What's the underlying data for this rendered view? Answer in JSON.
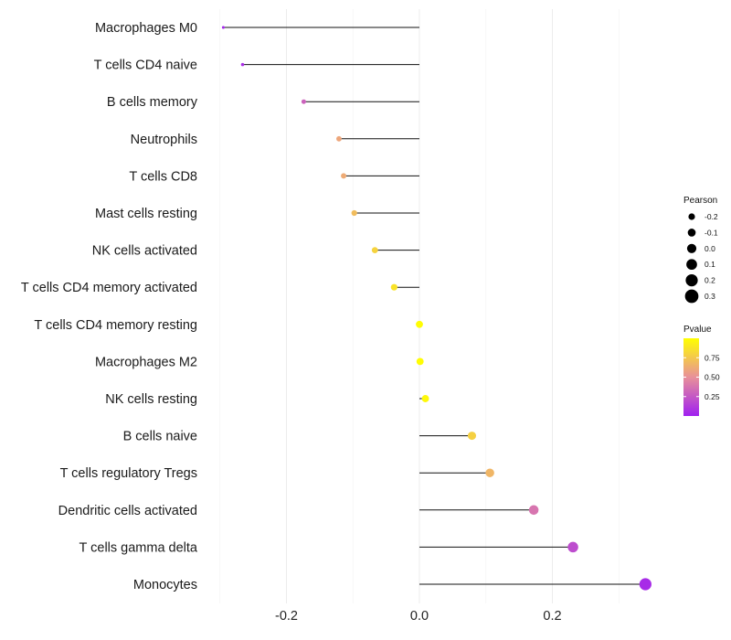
{
  "chart_data": {
    "type": "lollipop",
    "title": "",
    "xlabel": "",
    "ylabel": "",
    "xlim": [
      -0.3,
      0.35
    ],
    "grid": true,
    "x_ticks": [
      -0.2,
      0.0,
      0.2
    ],
    "x_tick_labels": [
      "-0.2",
      "0.0",
      "0.2"
    ],
    "categories": [
      "Macrophages M0",
      "T cells CD4 naive",
      "B cells memory",
      "Neutrophils",
      "T cells CD8",
      "Mast cells resting",
      "NK cells activated",
      "T cells CD4 memory activated",
      "T cells CD4 memory resting",
      "Macrophages M2",
      "NK cells resting",
      "B cells naive",
      "T cells regulatory  Tregs ",
      "Dendritic cells activated",
      "T cells gamma delta",
      "Monocytes"
    ],
    "values": [
      -0.295,
      -0.266,
      -0.174,
      -0.121,
      -0.114,
      -0.098,
      -0.067,
      -0.038,
      0.0,
      0.001,
      0.009,
      0.079,
      0.106,
      0.172,
      0.231,
      0.34
    ],
    "pvalues": [
      0.03,
      0.06,
      0.3,
      0.6,
      0.62,
      0.7,
      0.8,
      0.87,
      0.99,
      0.99,
      0.97,
      0.79,
      0.67,
      0.38,
      0.2,
      0.05
    ],
    "legend": {
      "position": "right",
      "size_title": "Pearson",
      "size_breaks": [
        "-0.2",
        "-0.1",
        "0.0",
        "0.1",
        "0.2",
        "0.3"
      ],
      "size_break_values": [
        -0.2,
        -0.1,
        0.0,
        0.1,
        0.2,
        0.3
      ],
      "color_title": "Pvalue",
      "color_breaks": [
        "0.75",
        "0.50",
        "0.25"
      ],
      "color_break_values": [
        0.75,
        0.5,
        0.25
      ],
      "color_range": [
        0.0,
        1.0
      ],
      "color_low": "#a020f0",
      "color_mid": "#e8909a",
      "color_high": "#ffff00"
    }
  }
}
